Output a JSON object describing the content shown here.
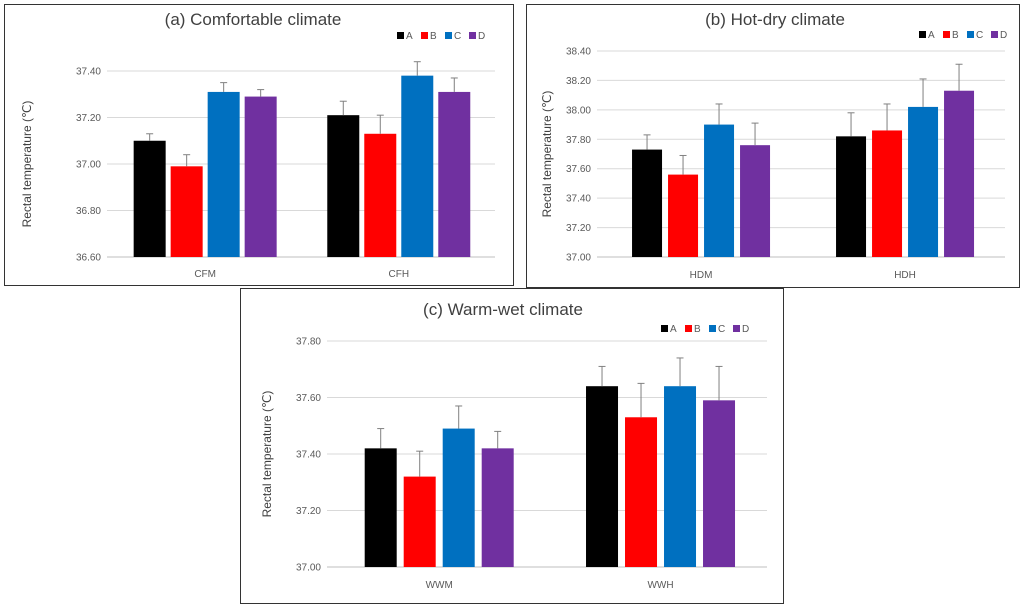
{
  "chart_data": [
    {
      "id": "a",
      "type": "bar",
      "title": "(a) Comfortable climate",
      "ylabel": "Rectal temperature (℃)",
      "xlabel": "",
      "categories": [
        "CFM",
        "CFH"
      ],
      "ylim": [
        36.6,
        37.4
      ],
      "yticks": [
        "36.60",
        "36.80",
        "37.00",
        "37.20",
        "37.40"
      ],
      "legend": "top-right",
      "series": [
        {
          "name": "A",
          "color": "#000000",
          "values": [
            37.1,
            37.21
          ],
          "errors": [
            0.03,
            0.06
          ]
        },
        {
          "name": "B",
          "color": "#ff0000",
          "values": [
            36.99,
            37.13
          ],
          "errors": [
            0.05,
            0.08
          ]
        },
        {
          "name": "C",
          "color": "#0070c0",
          "values": [
            37.31,
            37.38
          ],
          "errors": [
            0.04,
            0.06
          ]
        },
        {
          "name": "D",
          "color": "#7030a0",
          "values": [
            37.29,
            37.31
          ],
          "errors": [
            0.03,
            0.06
          ]
        }
      ]
    },
    {
      "id": "b",
      "type": "bar",
      "title": "(b) Hot-dry climate",
      "ylabel": "Rectal temperature (℃)",
      "xlabel": "",
      "categories": [
        "HDM",
        "HDH"
      ],
      "ylim": [
        37.0,
        38.4
      ],
      "yticks": [
        "37.00",
        "37.20",
        "37.40",
        "37.60",
        "37.80",
        "38.00",
        "38.20",
        "38.40"
      ],
      "legend": "top-right",
      "series": [
        {
          "name": "A",
          "color": "#000000",
          "values": [
            37.73,
            37.82
          ],
          "errors": [
            0.1,
            0.16
          ]
        },
        {
          "name": "B",
          "color": "#ff0000",
          "values": [
            37.56,
            37.86
          ],
          "errors": [
            0.13,
            0.18
          ]
        },
        {
          "name": "C",
          "color": "#0070c0",
          "values": [
            37.9,
            38.02
          ],
          "errors": [
            0.14,
            0.19
          ]
        },
        {
          "name": "D",
          "color": "#7030a0",
          "values": [
            37.76,
            38.13
          ],
          "errors": [
            0.15,
            0.18
          ]
        }
      ]
    },
    {
      "id": "c",
      "type": "bar",
      "title": "(c) Warm-wet climate",
      "ylabel": "Rectal temperature (℃)",
      "xlabel": "",
      "categories": [
        "WWM",
        "WWH"
      ],
      "ylim": [
        37.0,
        37.8
      ],
      "yticks": [
        "37.00",
        "37.20",
        "37.40",
        "37.60",
        "37.80"
      ],
      "legend": "top-right",
      "series": [
        {
          "name": "A",
          "color": "#000000",
          "values": [
            37.42,
            37.64
          ],
          "errors": [
            0.07,
            0.07
          ]
        },
        {
          "name": "B",
          "color": "#ff0000",
          "values": [
            37.32,
            37.53
          ],
          "errors": [
            0.09,
            0.12
          ]
        },
        {
          "name": "C",
          "color": "#0070c0",
          "values": [
            37.49,
            37.64
          ],
          "errors": [
            0.08,
            0.1
          ]
        },
        {
          "name": "D",
          "color": "#7030a0",
          "values": [
            37.42,
            37.59
          ],
          "errors": [
            0.06,
            0.12
          ]
        }
      ]
    }
  ]
}
